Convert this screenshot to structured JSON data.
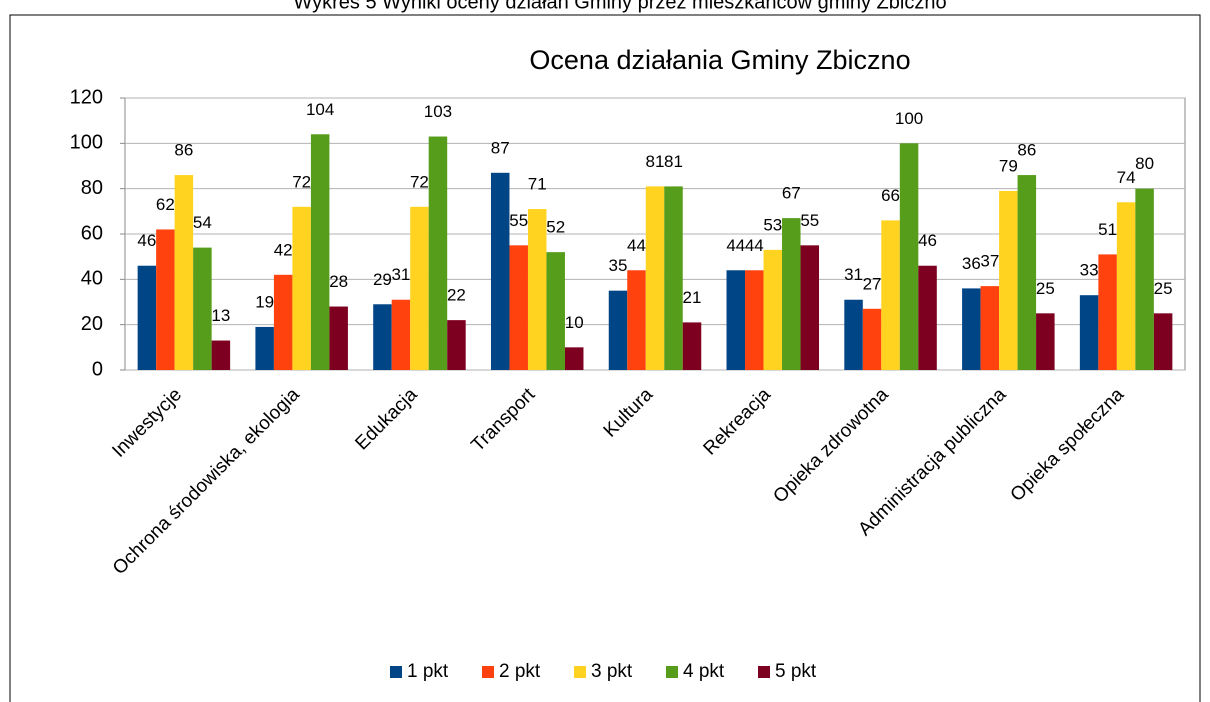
{
  "caption": "Wykres 5 Wyniki oceny działań Gminy przez mieszkańców gminy Zbiczno",
  "chart_data": {
    "type": "bar",
    "title": "Ocena działania Gminy Zbiczno",
    "categories": [
      "Inwestycje",
      "Ochrona środowiska, ekologia",
      "Edukacja",
      "Transport",
      "Kultura",
      "Rekreacja",
      "Opieka zdrowotna",
      "Administracja publiczna",
      "Opieka społeczna"
    ],
    "series": [
      {
        "name": "1 pkt",
        "color": "#004586",
        "values": [
          46,
          19,
          29,
          87,
          35,
          44,
          31,
          36,
          33
        ]
      },
      {
        "name": "2 pkt",
        "color": "#ff420e",
        "values": [
          62,
          42,
          31,
          55,
          44,
          44,
          27,
          37,
          51
        ]
      },
      {
        "name": "3 pkt",
        "color": "#ffd320",
        "values": [
          86,
          72,
          72,
          71,
          81,
          53,
          66,
          79,
          74
        ]
      },
      {
        "name": "4 pkt",
        "color": "#579d1c",
        "values": [
          54,
          104,
          103,
          52,
          81,
          67,
          100,
          86,
          80
        ]
      },
      {
        "name": "5 pkt",
        "color": "#7e0021",
        "values": [
          13,
          28,
          22,
          10,
          21,
          55,
          46,
          25,
          25
        ]
      }
    ],
    "ylim": [
      0,
      120
    ],
    "yticks": [
      0,
      20,
      40,
      60,
      80,
      100,
      120
    ],
    "grid": true,
    "legend": "bottom"
  }
}
